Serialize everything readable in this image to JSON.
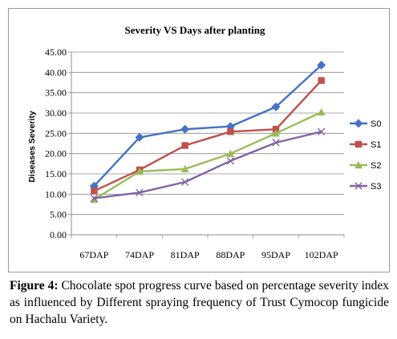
{
  "caption": {
    "label": "Figure 4:",
    "text": "Chocolate spot progress curve based on percentage severity index as influenced by Different spraying frequency of Trust Cymocop fungicide on Hachalu Variety."
  },
  "chart_data": {
    "type": "line",
    "title": "Severity VS Days after planting",
    "xlabel": "",
    "ylabel": "Diseases Severity",
    "categories": [
      "67DAP",
      "74DAP",
      "81DAP",
      "88DAP",
      "95DAP",
      "102DAP"
    ],
    "ylim": [
      0,
      45
    ],
    "yticks": [
      "0.00",
      "5.00",
      "10.00",
      "15.00",
      "20.00",
      "25.00",
      "30.00",
      "35.00",
      "40.00",
      "45.00"
    ],
    "grid": true,
    "legend_position": "right",
    "series": [
      {
        "name": "S0",
        "color": "#4472C4",
        "marker": "diamond",
        "values": [
          12.0,
          24.0,
          26.0,
          26.7,
          31.5,
          41.8
        ]
      },
      {
        "name": "S1",
        "color": "#C0504D",
        "marker": "square",
        "values": [
          10.8,
          16.0,
          22.0,
          25.4,
          26.0,
          38.0
        ]
      },
      {
        "name": "S2",
        "color": "#9BBB59",
        "marker": "triangle",
        "values": [
          8.7,
          15.6,
          16.2,
          20.0,
          25.0,
          30.2
        ]
      },
      {
        "name": "S3",
        "color": "#8064A2",
        "marker": "x",
        "values": [
          9.0,
          10.4,
          13.0,
          18.2,
          22.7,
          25.4
        ]
      }
    ]
  }
}
